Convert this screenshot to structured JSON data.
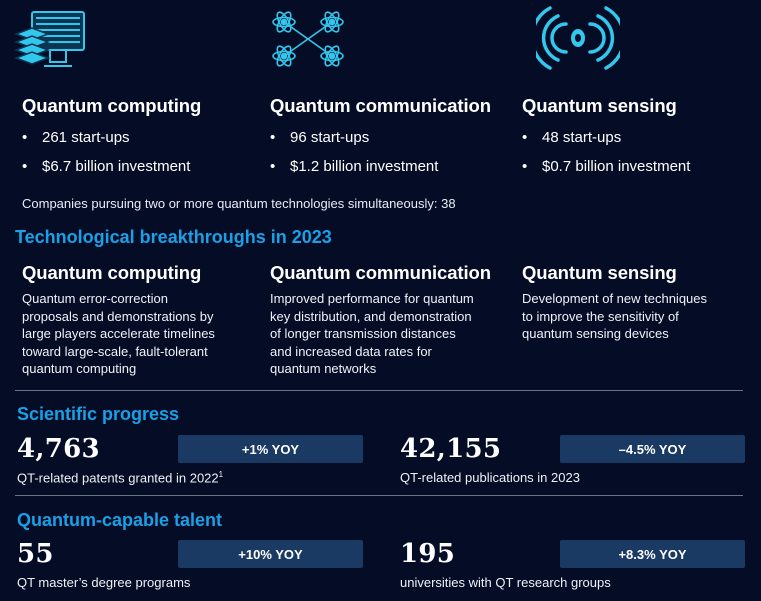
{
  "icons": {
    "computing": "computer-icon",
    "communication": "atoms-network-icon",
    "sensing": "signal-waves-icon"
  },
  "colors": {
    "background": "#050d26",
    "accent": "#1aa0e6",
    "icon": "#33c7ee",
    "badge": "#1a3a63"
  },
  "columns": [
    {
      "title": "Quantum computing",
      "bullets": [
        "261 start-ups",
        "$6.7 billion investment"
      ]
    },
    {
      "title": "Quantum communication",
      "bullets": [
        "96 start-ups",
        "$1.2 billion investment"
      ]
    },
    {
      "title": "Quantum sensing",
      "bullets": [
        "48 start-ups",
        "$0.7 billion investment"
      ]
    }
  ],
  "companies_text": "Companies pursuing two or more quantum technologies simultaneously: 38",
  "breakthroughs": {
    "title": "Technological breakthroughs in 2023",
    "items": [
      {
        "title": "Quantum computing",
        "lines": [
          "Quantum error-correction",
          "proposals and demonstrations by",
          "large players accelerate timelines",
          "toward large-scale, fault-tolerant",
          "quantum computing"
        ]
      },
      {
        "title": "Quantum communication",
        "lines": [
          "Improved performance for quantum",
          "key distribution, and demonstration",
          "of longer transmission distances",
          "and increased data rates for",
          "quantum networks"
        ]
      },
      {
        "title": "Quantum sensing",
        "lines": [
          "Development of new techniques",
          "to improve the sensitivity of",
          "quantum sensing devices"
        ]
      }
    ]
  },
  "scientific_progress": {
    "title": "Scientific progress",
    "stats": [
      {
        "value": "4,763",
        "change": "+1% YOY",
        "label": "QT-related patents granted in 2022",
        "footnote": "1"
      },
      {
        "value": "42,155",
        "change": "–4.5% YOY",
        "label": "QT-related publications in 2023"
      }
    ]
  },
  "talent": {
    "title": "Quantum-capable talent",
    "stats": [
      {
        "value": "55",
        "change": "+10% YOY",
        "label": "QT master’s degree programs"
      },
      {
        "value": "195",
        "change": "+8.3% YOY",
        "label": "universities with QT research groups"
      }
    ]
  }
}
